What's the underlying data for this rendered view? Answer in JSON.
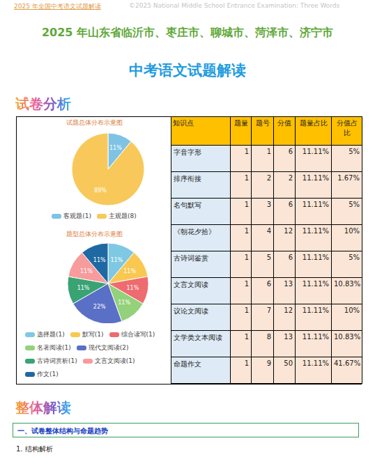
{
  "header": {
    "left": "2025 年全国中考语文试题解读",
    "right": "©2025 National Middle School Entrance Examination: Three Words"
  },
  "title": "2025 年山东省临沂市、枣庄市、聊城市、菏泽市、济宁市",
  "subtitle": "中考语文试题解读",
  "section_label": "试卷分析",
  "chart_data": [
    {
      "type": "pie",
      "title": "试题总体分布示意图",
      "categories": [
        "客观题(1)",
        "主观题(8)"
      ],
      "values": [
        11,
        89
      ],
      "value_labels": [
        "11%",
        "89%"
      ],
      "colors": [
        "#7ec3e3",
        "#f8c95a"
      ],
      "legend": "bottom",
      "data_labels": true
    },
    {
      "type": "pie",
      "title": "题型总体分布示意图",
      "categories": [
        "选择题(1)",
        "默写(1)",
        "综合读写(1)",
        "名著阅读(1)",
        "现代文阅读(2)",
        "古诗词赏析(1)",
        "文言文阅读(1)",
        "作文(1)"
      ],
      "values": [
        11,
        11,
        11,
        11,
        22,
        11,
        11,
        11
      ],
      "value_labels": [
        "11%",
        "11%",
        "11%",
        "11%",
        "22%",
        "11%",
        "11%",
        "11%"
      ],
      "colors": [
        "#7ec8e3",
        "#f8c851",
        "#ee6b70",
        "#93d17b",
        "#5a6fc6",
        "#3aa374",
        "#f79b9d",
        "#1f69a3"
      ],
      "legend": "bottom",
      "data_labels": true
    }
  ],
  "table": {
    "columns": [
      "知识点",
      "题量",
      "题号",
      "分值",
      "题量占比",
      "分值占比"
    ],
    "rows": [
      [
        "字音字形",
        "1",
        "1",
        "6",
        "11.11%",
        "5%"
      ],
      [
        "排序衔接",
        "1",
        "2",
        "2",
        "11.11%",
        "1.67%"
      ],
      [
        "名句默写",
        "1",
        "3",
        "6",
        "11.11%",
        "5%"
      ],
      [
        "《朝花夕拾》",
        "1",
        "4",
        "12",
        "11.11%",
        "10%"
      ],
      [
        "古诗词鉴赏",
        "1",
        "5",
        "6",
        "11.11%",
        "5%"
      ],
      [
        "文言文阅读",
        "1",
        "6",
        "13",
        "11.11%",
        "10.83%"
      ],
      [
        "议论文阅读",
        "1",
        "7",
        "12",
        "11.11%",
        "10%"
      ],
      [
        "文学类文本阅读",
        "1",
        "8",
        "13",
        "11.11%",
        "10.83%"
      ],
      [
        "命题作文",
        "1",
        "9",
        "50",
        "11.11%",
        "41.67%"
      ]
    ]
  },
  "section2_label": "整体解读",
  "heading": "一、试卷整体结构与命题趋势",
  "paragraph": "1. 结构解析"
}
